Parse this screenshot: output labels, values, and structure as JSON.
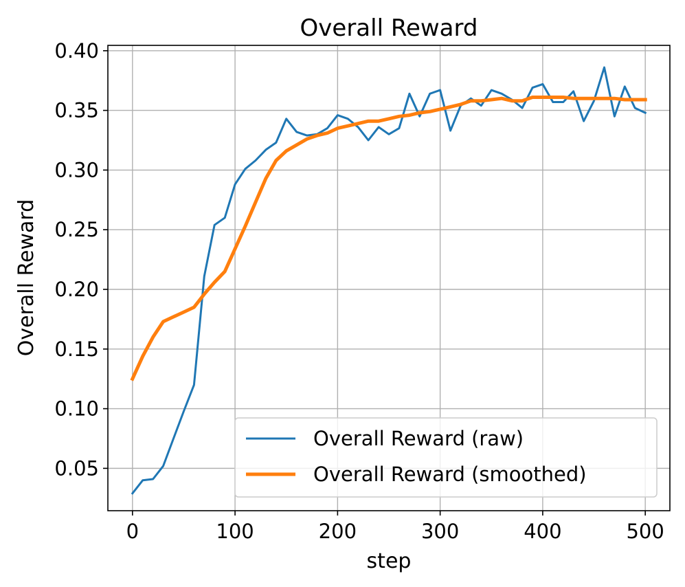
{
  "chart_data": {
    "type": "line",
    "title": "Overall Reward",
    "xlabel": "step",
    "ylabel": "Overall Reward",
    "xlim": [
      -24,
      524
    ],
    "ylim": [
      0.0145,
      0.4045
    ],
    "x_ticks": [
      0,
      100,
      200,
      300,
      400,
      500
    ],
    "x_tick_labels": [
      "0",
      "100",
      "200",
      "300",
      "400",
      "500"
    ],
    "y_ticks": [
      0.05,
      0.1,
      0.15,
      0.2,
      0.25,
      0.3,
      0.35,
      0.4
    ],
    "y_tick_labels": [
      "0.05",
      "0.10",
      "0.15",
      "0.20",
      "0.25",
      "0.30",
      "0.35",
      "0.40"
    ],
    "grid": true,
    "legend_position": "lower-right",
    "x": [
      0,
      10,
      20,
      30,
      40,
      50,
      60,
      70,
      80,
      90,
      100,
      110,
      120,
      130,
      140,
      150,
      160,
      170,
      180,
      190,
      200,
      210,
      220,
      230,
      240,
      250,
      260,
      270,
      280,
      290,
      300,
      310,
      320,
      330,
      340,
      350,
      360,
      370,
      380,
      390,
      400,
      410,
      420,
      430,
      440,
      450,
      460,
      470,
      480,
      490,
      500
    ],
    "series": [
      {
        "name": "Overall Reward (raw)",
        "color": "#1f77b4",
        "width": 3,
        "values": [
          0.029,
          0.04,
          0.041,
          0.052,
          0.075,
          0.098,
          0.12,
          0.211,
          0.254,
          0.26,
          0.288,
          0.301,
          0.308,
          0.317,
          0.323,
          0.343,
          0.332,
          0.329,
          0.33,
          0.335,
          0.346,
          0.343,
          0.336,
          0.325,
          0.336,
          0.33,
          0.335,
          0.364,
          0.345,
          0.364,
          0.367,
          0.333,
          0.354,
          0.36,
          0.354,
          0.367,
          0.364,
          0.359,
          0.352,
          0.369,
          0.372,
          0.357,
          0.357,
          0.366,
          0.341,
          0.358,
          0.386,
          0.345,
          0.37,
          0.352,
          0.348
        ]
      },
      {
        "name": "Overall Reward (smoothed)",
        "color": "#ff7f0e",
        "width": 5,
        "values": [
          0.125,
          0.144,
          0.16,
          0.173,
          0.177,
          0.181,
          0.185,
          0.196,
          0.206,
          0.215,
          0.234,
          0.253,
          0.273,
          0.293,
          0.308,
          0.316,
          0.321,
          0.326,
          0.329,
          0.331,
          0.335,
          0.337,
          0.339,
          0.341,
          0.341,
          0.343,
          0.345,
          0.346,
          0.348,
          0.349,
          0.351,
          0.353,
          0.355,
          0.358,
          0.358,
          0.359,
          0.36,
          0.358,
          0.358,
          0.361,
          0.361,
          0.361,
          0.361,
          0.36,
          0.36,
          0.36,
          0.36,
          0.36,
          0.359,
          0.359,
          0.359
        ]
      }
    ]
  }
}
